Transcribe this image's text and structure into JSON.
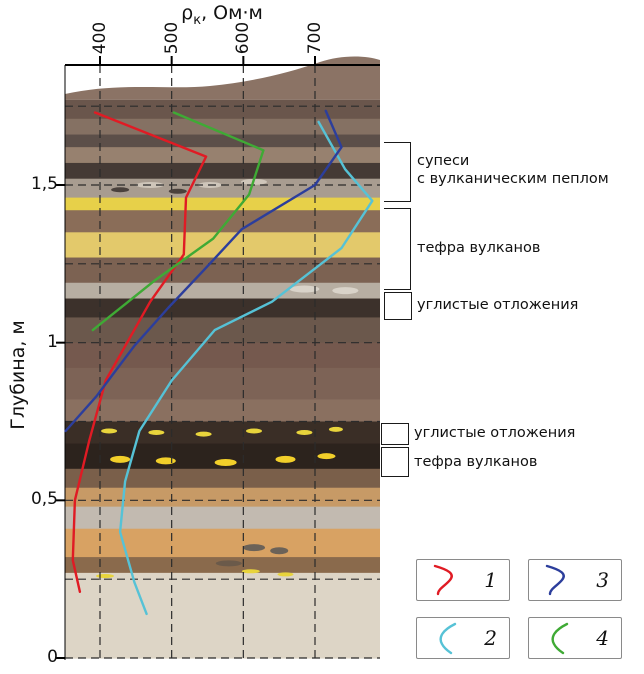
{
  "axes": {
    "x": {
      "title_symbol": "ρ",
      "title_sub": "к",
      "title_units": ", Ом·м",
      "ticks": [
        "400",
        "500",
        "600",
        "700"
      ],
      "tick_values": [
        400,
        500,
        600,
        700
      ],
      "range": [
        350,
        790
      ]
    },
    "y": {
      "title": "Глубина, м",
      "ticks": [
        "0",
        "0,5",
        "1",
        "1,5"
      ],
      "tick_values": [
        0,
        0.5,
        1,
        1.5
      ],
      "range": [
        0,
        1.88
      ]
    }
  },
  "right_labels": [
    {
      "lines": [
        "супеси",
        "с вулканическим пеплом"
      ],
      "bracket": "open"
    },
    {
      "lines": [
        "тефра вулканов"
      ],
      "bracket": "open"
    },
    {
      "lines": [
        "углистые отложения"
      ],
      "bracket": "box"
    },
    {
      "lines": [
        "углистые отложения"
      ],
      "bracket": "box"
    },
    {
      "lines": [
        "тефра вулканов"
      ],
      "bracket": "box"
    }
  ],
  "legend": {
    "items": [
      {
        "label": "1",
        "color": "#e01b24",
        "shape": "a"
      },
      {
        "label": "3",
        "color": "#2c3e9c",
        "shape": "a"
      },
      {
        "label": "2",
        "color": "#56c2d6",
        "shape": "b"
      },
      {
        "label": "4",
        "color": "#3faa35",
        "shape": "b"
      }
    ]
  },
  "chart_data": {
    "type": "line",
    "title": "ρк, Ом·м",
    "xlabel": "ρк, Ом·м",
    "ylabel": "Глубина, м",
    "x_range": [
      350,
      790
    ],
    "depth_range": [
      0,
      1.88
    ],
    "grid": {
      "v": [
        400,
        500,
        600,
        700
      ],
      "h": [
        0,
        0.25,
        0.5,
        0.75,
        1.0,
        1.25,
        1.5,
        1.75
      ],
      "major_y": [
        0,
        0.5,
        1.0,
        1.5
      ]
    },
    "series": [
      {
        "name": "1",
        "color": "#e01b24",
        "points": [
          [
            393,
            1.73
          ],
          [
            548,
            1.59
          ],
          [
            520,
            1.46
          ],
          [
            517,
            1.28
          ],
          [
            470,
            1.13
          ],
          [
            408,
            0.88
          ],
          [
            385,
            0.69
          ],
          [
            365,
            0.5
          ],
          [
            362,
            0.31
          ],
          [
            372,
            0.21
          ]
        ]
      },
      {
        "name": "2",
        "color": "#56c2d6",
        "points": [
          [
            705,
            1.7
          ],
          [
            742,
            1.55
          ],
          [
            780,
            1.45
          ],
          [
            737,
            1.3
          ],
          [
            640,
            1.13
          ],
          [
            560,
            1.04
          ],
          [
            500,
            0.88
          ],
          [
            455,
            0.72
          ],
          [
            435,
            0.56
          ],
          [
            428,
            0.4
          ],
          [
            448,
            0.24
          ],
          [
            465,
            0.14
          ]
        ]
      },
      {
        "name": "3",
        "color": "#2c3e9c",
        "points": [
          [
            715,
            1.735
          ],
          [
            737,
            1.62
          ],
          [
            700,
            1.5
          ],
          [
            598,
            1.36
          ],
          [
            545,
            1.23
          ],
          [
            495,
            1.11
          ],
          [
            448,
            0.99
          ],
          [
            395,
            0.83
          ],
          [
            352,
            0.72
          ]
        ]
      },
      {
        "name": "4",
        "color": "#3faa35",
        "points": [
          [
            503,
            1.73
          ],
          [
            628,
            1.61
          ],
          [
            608,
            1.47
          ],
          [
            558,
            1.33
          ],
          [
            478,
            1.2
          ],
          [
            423,
            1.1
          ],
          [
            390,
            1.04
          ]
        ]
      }
    ],
    "layers": [
      {
        "top": 1.88,
        "bottom": 1.77,
        "color": "#8b7365"
      },
      {
        "top": 1.77,
        "bottom": 1.71,
        "color": "#6a564c"
      },
      {
        "top": 1.71,
        "bottom": 1.66,
        "color": "#857163"
      },
      {
        "top": 1.66,
        "bottom": 1.62,
        "color": "#5c4f49"
      },
      {
        "top": 1.62,
        "bottom": 1.57,
        "color": "#97816f"
      },
      {
        "top": 1.57,
        "bottom": 1.52,
        "color": "#453a35"
      },
      {
        "top": 1.52,
        "bottom": 1.46,
        "color": "#a89c90"
      },
      {
        "top": 1.46,
        "bottom": 1.42,
        "color": "#e7d049"
      },
      {
        "top": 1.42,
        "bottom": 1.35,
        "color": "#8a6d58"
      },
      {
        "top": 1.35,
        "bottom": 1.27,
        "color": "#e3c96b"
      },
      {
        "top": 1.27,
        "bottom": 1.19,
        "color": "#7c6252"
      },
      {
        "top": 1.19,
        "bottom": 1.14,
        "color": "#b7aea2"
      },
      {
        "top": 1.14,
        "bottom": 1.08,
        "color": "#3c312b"
      },
      {
        "top": 1.08,
        "bottom": 1.0,
        "color": "#6b584c"
      },
      {
        "top": 1.0,
        "bottom": 0.92,
        "color": "#75594e"
      },
      {
        "top": 0.92,
        "bottom": 0.82,
        "color": "#7d6356"
      },
      {
        "top": 0.82,
        "bottom": 0.75,
        "color": "#8a7060"
      },
      {
        "top": 0.75,
        "bottom": 0.68,
        "color": "#3a2e26"
      },
      {
        "top": 0.68,
        "bottom": 0.6,
        "color": "#2c231d"
      },
      {
        "top": 0.6,
        "bottom": 0.54,
        "color": "#7a5f4a"
      },
      {
        "top": 0.54,
        "bottom": 0.48,
        "color": "#c79a66"
      },
      {
        "top": 0.48,
        "bottom": 0.41,
        "color": "#c2bab0"
      },
      {
        "top": 0.41,
        "bottom": 0.32,
        "color": "#d8a263"
      },
      {
        "top": 0.32,
        "bottom": 0.27,
        "color": "#8a6a4c"
      },
      {
        "top": 0.27,
        "bottom": 0.0,
        "color": "#ddd5c6"
      }
    ],
    "patches": [
      {
        "f": 0.27,
        "depth": 1.5,
        "w": 28,
        "h": 6,
        "color": "#cfc6ba"
      },
      {
        "f": 0.46,
        "depth": 1.5,
        "w": 24,
        "h": 6,
        "color": "#cfc6ba"
      },
      {
        "f": 0.6,
        "depth": 1.51,
        "w": 26,
        "h": 6,
        "color": "#cfc6ba"
      },
      {
        "f": 0.175,
        "depth": 1.485,
        "w": 18,
        "h": 5,
        "color": "#4a413c"
      },
      {
        "f": 0.358,
        "depth": 1.48,
        "w": 18,
        "h": 5,
        "color": "#4a413c"
      },
      {
        "f": 0.76,
        "depth": 1.17,
        "w": 30,
        "h": 7,
        "color": "#d9d3c9"
      },
      {
        "f": 0.89,
        "depth": 1.165,
        "w": 26,
        "h": 7,
        "color": "#d9d3c9"
      },
      {
        "f": 0.14,
        "depth": 0.72,
        "w": 16,
        "h": 5,
        "color": "#e8d43c"
      },
      {
        "f": 0.29,
        "depth": 0.715,
        "w": 16,
        "h": 5,
        "color": "#e8d43c"
      },
      {
        "f": 0.44,
        "depth": 0.71,
        "w": 16,
        "h": 5,
        "color": "#e8d43c"
      },
      {
        "f": 0.6,
        "depth": 0.72,
        "w": 16,
        "h": 5,
        "color": "#e8d43c"
      },
      {
        "f": 0.76,
        "depth": 0.715,
        "w": 16,
        "h": 5,
        "color": "#e8d43c"
      },
      {
        "f": 0.86,
        "depth": 0.725,
        "w": 14,
        "h": 5,
        "color": "#e8d43c"
      },
      {
        "f": 0.175,
        "depth": 0.63,
        "w": 20,
        "h": 7,
        "color": "#f2cf2a"
      },
      {
        "f": 0.32,
        "depth": 0.625,
        "w": 20,
        "h": 7,
        "color": "#f2cf2a"
      },
      {
        "f": 0.51,
        "depth": 0.62,
        "w": 22,
        "h": 7,
        "color": "#f2cf2a"
      },
      {
        "f": 0.7,
        "depth": 0.63,
        "w": 20,
        "h": 7,
        "color": "#f2cf2a"
      },
      {
        "f": 0.83,
        "depth": 0.64,
        "w": 18,
        "h": 6,
        "color": "#f2cf2a"
      },
      {
        "f": 0.127,
        "depth": 0.26,
        "w": 18,
        "h": 4,
        "color": "#e8d43c"
      },
      {
        "f": 0.59,
        "depth": 0.275,
        "w": 18,
        "h": 4,
        "color": "#e8d43c"
      },
      {
        "f": 0.7,
        "depth": 0.265,
        "w": 16,
        "h": 4,
        "color": "#e8d43c"
      },
      {
        "f": 0.6,
        "depth": 0.35,
        "w": 22,
        "h": 7,
        "color": "#6b6258"
      },
      {
        "f": 0.68,
        "depth": 0.34,
        "w": 18,
        "h": 7,
        "color": "#6b6258"
      },
      {
        "f": 0.52,
        "depth": 0.3,
        "w": 26,
        "h": 6,
        "color": "#6b5a4a"
      }
    ]
  }
}
